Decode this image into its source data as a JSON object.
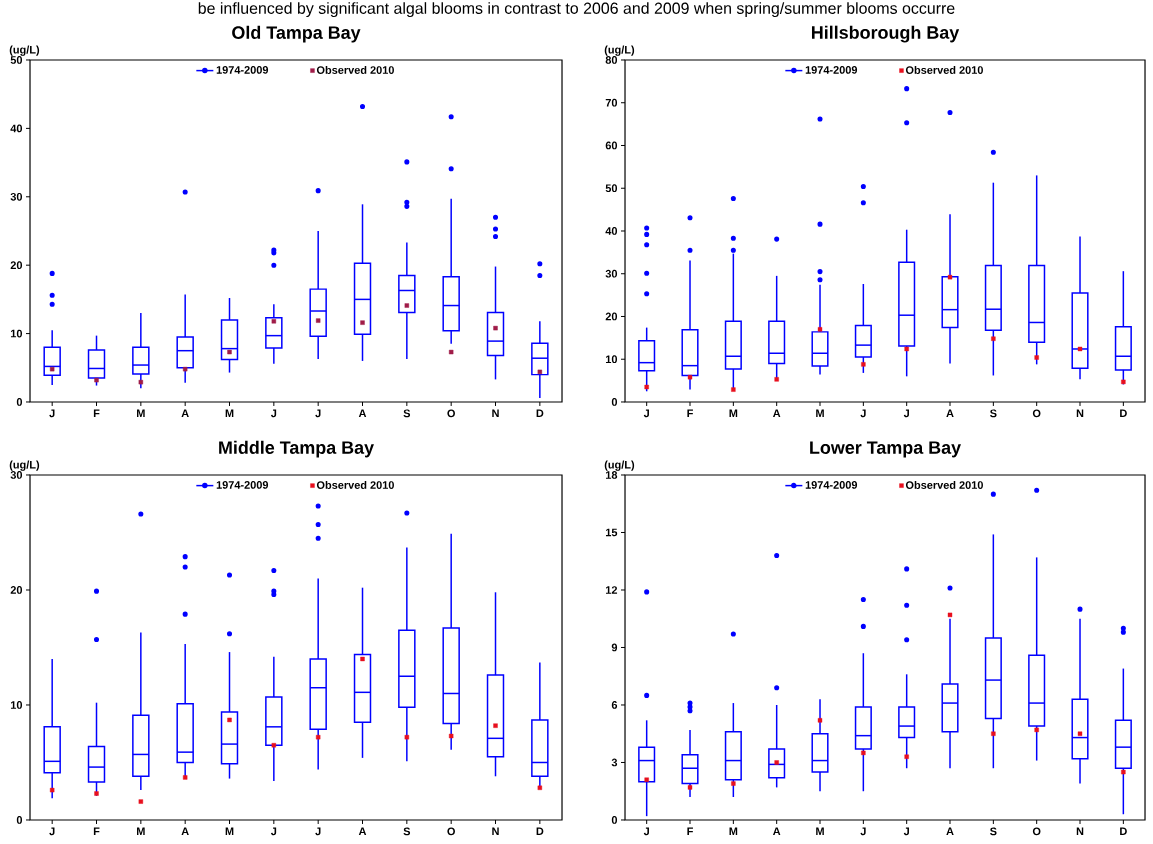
{
  "chart_data": [
    {
      "type": "box",
      "title": "Old Tampa Bay",
      "ylabel": "(ug/L)",
      "annotations": [
        "be influenced by significant algal blooms in contrast to 2006 and 2009 when spring/summer blooms occurre"
      ],
      "categories": [
        "J",
        "F",
        "M",
        "A",
        "M",
        "J",
        "J",
        "A",
        "S",
        "O",
        "N",
        "D"
      ],
      "ylim": [
        0,
        50
      ],
      "yticks": [
        0,
        10,
        20,
        30,
        40,
        50
      ],
      "legend": "top",
      "grid": false,
      "series": [
        {
          "name": "1974-2009",
          "type": "box",
          "color": "#0000ff",
          "marker": "circle",
          "boxes": [
            {
              "low": 2.5,
              "q1": 3.9,
              "median": 5.2,
              "q3": 8.0,
              "high": 10.5,
              "outliers": [
                18.8,
                15.6,
                14.3
              ]
            },
            {
              "low": 2.4,
              "q1": 3.5,
              "median": 4.9,
              "q3": 7.6,
              "high": 9.7
            },
            {
              "low": 2.0,
              "q1": 4.1,
              "median": 5.4,
              "q3": 8.0,
              "high": 13.0
            },
            {
              "low": 2.8,
              "q1": 5.0,
              "median": 7.5,
              "q3": 9.5,
              "high": 15.7,
              "outliers": [
                30.7
              ]
            },
            {
              "low": 4.3,
              "q1": 6.2,
              "median": 7.8,
              "q3": 12.0,
              "high": 15.2
            },
            {
              "low": 5.6,
              "q1": 7.9,
              "median": 9.7,
              "q3": 12.3,
              "high": 14.3,
              "outliers": [
                22.2,
                21.8,
                20.0
              ]
            },
            {
              "low": 6.3,
              "q1": 9.6,
              "median": 13.3,
              "q3": 16.5,
              "high": 25.0,
              "outliers": [
                30.9
              ]
            },
            {
              "low": 6.0,
              "q1": 9.9,
              "median": 15.0,
              "q3": 20.3,
              "high": 28.9,
              "outliers": [
                43.2
              ]
            },
            {
              "low": 6.3,
              "q1": 13.1,
              "median": 16.3,
              "q3": 18.5,
              "high": 23.3,
              "outliers": [
                35.1,
                29.2,
                28.6
              ]
            },
            {
              "low": 8.5,
              "q1": 10.4,
              "median": 14.1,
              "q3": 18.3,
              "high": 29.7,
              "outliers": [
                41.7,
                34.1
              ]
            },
            {
              "low": 3.3,
              "q1": 6.8,
              "median": 8.9,
              "q3": 13.1,
              "high": 19.8,
              "outliers": [
                27.0,
                25.3,
                24.2
              ]
            },
            {
              "low": 0.6,
              "q1": 4.0,
              "median": 6.4,
              "q3": 8.6,
              "high": 11.8,
              "outliers": [
                20.2,
                18.5
              ]
            }
          ]
        },
        {
          "name": "Observed 2010",
          "type": "scatter",
          "color": "#a01c48",
          "marker": "square",
          "values": [
            4.8,
            3.2,
            2.9,
            4.8,
            7.3,
            11.8,
            11.9,
            11.6,
            14.1,
            7.3,
            10.8,
            4.4
          ]
        }
      ]
    },
    {
      "type": "box",
      "title": "Hillsborough Bay",
      "ylabel": "(ug/L)",
      "categories": [
        "J",
        "F",
        "M",
        "A",
        "M",
        "J",
        "J",
        "A",
        "S",
        "O",
        "N",
        "D"
      ],
      "ylim": [
        0,
        80
      ],
      "yticks": [
        0,
        10,
        20,
        30,
        40,
        50,
        60,
        70,
        80
      ],
      "legend": "top",
      "grid": false,
      "series": [
        {
          "name": "1974-2009",
          "type": "box",
          "color": "#0000ff",
          "marker": "circle",
          "boxes": [
            {
              "low": 2.5,
              "q1": 7.3,
              "median": 9.2,
              "q3": 14.3,
              "high": 17.4,
              "outliers": [
                40.7,
                39.2,
                36.8,
                30.1,
                25.3
              ]
            },
            {
              "low": 2.9,
              "q1": 6.2,
              "median": 8.5,
              "q3": 16.9,
              "high": 33.1,
              "outliers": [
                43.1,
                35.5
              ]
            },
            {
              "low": 3.2,
              "q1": 7.7,
              "median": 10.7,
              "q3": 18.9,
              "high": 34.7,
              "outliers": [
                47.6,
                38.3,
                35.5
              ]
            },
            {
              "low": 5.3,
              "q1": 9.0,
              "median": 11.4,
              "q3": 18.9,
              "high": 29.5,
              "outliers": [
                38.1
              ]
            },
            {
              "low": 6.4,
              "q1": 8.4,
              "median": 11.4,
              "q3": 16.4,
              "high": 27.4,
              "outliers": [
                66.2,
                41.6,
                30.5,
                28.6
              ]
            },
            {
              "low": 6.8,
              "q1": 10.5,
              "median": 13.3,
              "q3": 17.9,
              "high": 27.6,
              "outliers": [
                50.4,
                46.6
              ]
            },
            {
              "low": 6.0,
              "q1": 13.1,
              "median": 20.3,
              "q3": 32.7,
              "high": 40.3,
              "outliers": [
                73.3,
                65.3
              ]
            },
            {
              "low": 9.0,
              "q1": 17.4,
              "median": 21.6,
              "q3": 29.3,
              "high": 43.9,
              "outliers": [
                67.7
              ]
            },
            {
              "low": 6.2,
              "q1": 16.8,
              "median": 21.7,
              "q3": 31.9,
              "high": 51.3,
              "outliers": [
                58.4
              ]
            },
            {
              "low": 8.8,
              "q1": 14.0,
              "median": 18.6,
              "q3": 31.9,
              "high": 53.0
            },
            {
              "low": 5.3,
              "q1": 7.9,
              "median": 12.4,
              "q3": 25.5,
              "high": 38.7
            },
            {
              "low": 4.1,
              "q1": 7.5,
              "median": 10.7,
              "q3": 17.6,
              "high": 30.6
            }
          ]
        },
        {
          "name": "Observed 2010",
          "type": "scatter",
          "color": "#e8101e",
          "marker": "square",
          "values": [
            3.5,
            5.8,
            2.9,
            5.3,
            17.0,
            8.8,
            12.4,
            29.2,
            14.8,
            10.4,
            12.4,
            4.7
          ]
        }
      ]
    },
    {
      "type": "box",
      "title": "Middle Tampa Bay",
      "ylabel": "(ug/L)",
      "categories": [
        "J",
        "F",
        "M",
        "A",
        "M",
        "J",
        "J",
        "A",
        "S",
        "O",
        "N",
        "D"
      ],
      "ylim": [
        0,
        30
      ],
      "yticks": [
        0,
        10,
        20,
        30
      ],
      "legend": "top",
      "grid": false,
      "series": [
        {
          "name": "1974-2009",
          "type": "box",
          "color": "#0000ff",
          "marker": "circle",
          "boxes": [
            {
              "low": 1.9,
              "q1": 4.1,
              "median": 5.1,
              "q3": 8.1,
              "high": 14.0
            },
            {
              "low": 2.1,
              "q1": 3.3,
              "median": 4.6,
              "q3": 6.4,
              "high": 10.2,
              "outliers": [
                19.9,
                15.7
              ]
            },
            {
              "low": 2.6,
              "q1": 3.8,
              "median": 5.7,
              "q3": 9.1,
              "high": 16.3,
              "outliers": [
                26.6
              ]
            },
            {
              "low": 3.7,
              "q1": 5.0,
              "median": 5.9,
              "q3": 10.1,
              "high": 15.3,
              "outliers": [
                22.9,
                22.0,
                17.9
              ]
            },
            {
              "low": 3.6,
              "q1": 4.9,
              "median": 6.6,
              "q3": 9.4,
              "high": 14.6,
              "outliers": [
                21.3,
                16.2
              ]
            },
            {
              "low": 3.4,
              "q1": 6.5,
              "median": 8.1,
              "q3": 10.7,
              "high": 14.2,
              "outliers": [
                21.7,
                19.9,
                19.6
              ]
            },
            {
              "low": 4.4,
              "q1": 7.9,
              "median": 11.5,
              "q3": 14.0,
              "high": 21.0,
              "outliers": [
                27.3,
                25.7,
                24.5
              ]
            },
            {
              "low": 5.4,
              "q1": 8.5,
              "median": 11.1,
              "q3": 14.4,
              "high": 20.2
            },
            {
              "low": 5.1,
              "q1": 9.8,
              "median": 12.5,
              "q3": 16.5,
              "high": 23.7,
              "outliers": [
                26.7
              ]
            },
            {
              "low": 6.1,
              "q1": 8.4,
              "median": 11.0,
              "q3": 16.7,
              "high": 24.9
            },
            {
              "low": 3.8,
              "q1": 5.5,
              "median": 7.1,
              "q3": 12.6,
              "high": 19.8
            },
            {
              "low": 2.9,
              "q1": 3.8,
              "median": 5.0,
              "q3": 8.7,
              "high": 13.7
            }
          ]
        },
        {
          "name": "Observed 2010",
          "type": "scatter",
          "color": "#e8101e",
          "marker": "square",
          "values": [
            2.6,
            2.3,
            1.6,
            3.7,
            8.7,
            6.5,
            7.2,
            14.0,
            7.2,
            7.3,
            8.2,
            2.8
          ]
        }
      ]
    },
    {
      "type": "box",
      "title": "Lower Tampa Bay",
      "ylabel": "(ug/L)",
      "categories": [
        "J",
        "F",
        "M",
        "A",
        "M",
        "J",
        "J",
        "A",
        "S",
        "O",
        "N",
        "D"
      ],
      "ylim": [
        0,
        18
      ],
      "yticks": [
        0,
        3,
        6,
        9,
        12,
        15,
        18
      ],
      "legend": "top",
      "grid": false,
      "series": [
        {
          "name": "1974-2009",
          "type": "box",
          "color": "#0000ff",
          "marker": "circle",
          "boxes": [
            {
              "low": 0.2,
              "q1": 2.0,
              "median": 3.1,
              "q3": 3.8,
              "high": 5.2,
              "outliers": [
                11.9,
                6.5
              ]
            },
            {
              "low": 1.2,
              "q1": 1.9,
              "median": 2.7,
              "q3": 3.4,
              "high": 4.7,
              "outliers": [
                6.1,
                5.9,
                5.7
              ]
            },
            {
              "low": 1.2,
              "q1": 2.1,
              "median": 3.1,
              "q3": 4.6,
              "high": 6.1,
              "outliers": [
                9.7
              ]
            },
            {
              "low": 1.7,
              "q1": 2.2,
              "median": 2.9,
              "q3": 3.7,
              "high": 6.0,
              "outliers": [
                13.8,
                6.9
              ]
            },
            {
              "low": 1.5,
              "q1": 2.5,
              "median": 3.1,
              "q3": 4.5,
              "high": 6.3
            },
            {
              "low": 1.5,
              "q1": 3.7,
              "median": 4.4,
              "q3": 5.9,
              "high": 8.7,
              "outliers": [
                11.5,
                10.1
              ]
            },
            {
              "low": 2.7,
              "q1": 4.3,
              "median": 4.9,
              "q3": 5.9,
              "high": 7.6,
              "outliers": [
                13.1,
                11.2,
                9.4
              ]
            },
            {
              "low": 2.7,
              "q1": 4.6,
              "median": 6.1,
              "q3": 7.1,
              "high": 10.5,
              "outliers": [
                12.1
              ]
            },
            {
              "low": 2.7,
              "q1": 5.3,
              "median": 7.3,
              "q3": 9.5,
              "high": 14.9,
              "outliers": [
                17.0
              ]
            },
            {
              "low": 3.1,
              "q1": 4.9,
              "median": 6.1,
              "q3": 8.6,
              "high": 13.7,
              "outliers": [
                17.2
              ]
            },
            {
              "low": 1.9,
              "q1": 3.2,
              "median": 4.3,
              "q3": 6.3,
              "high": 10.5,
              "outliers": [
                11.0
              ]
            },
            {
              "low": 0.3,
              "q1": 2.7,
              "median": 3.8,
              "q3": 5.2,
              "high": 7.9,
              "outliers": [
                10.0,
                9.8
              ]
            }
          ]
        },
        {
          "name": "Observed 2010",
          "type": "scatter",
          "color": "#e8101e",
          "marker": "square",
          "values": [
            2.1,
            1.7,
            1.9,
            3.0,
            5.2,
            3.5,
            3.3,
            10.7,
            4.5,
            4.7,
            4.5,
            2.5
          ]
        }
      ]
    }
  ]
}
